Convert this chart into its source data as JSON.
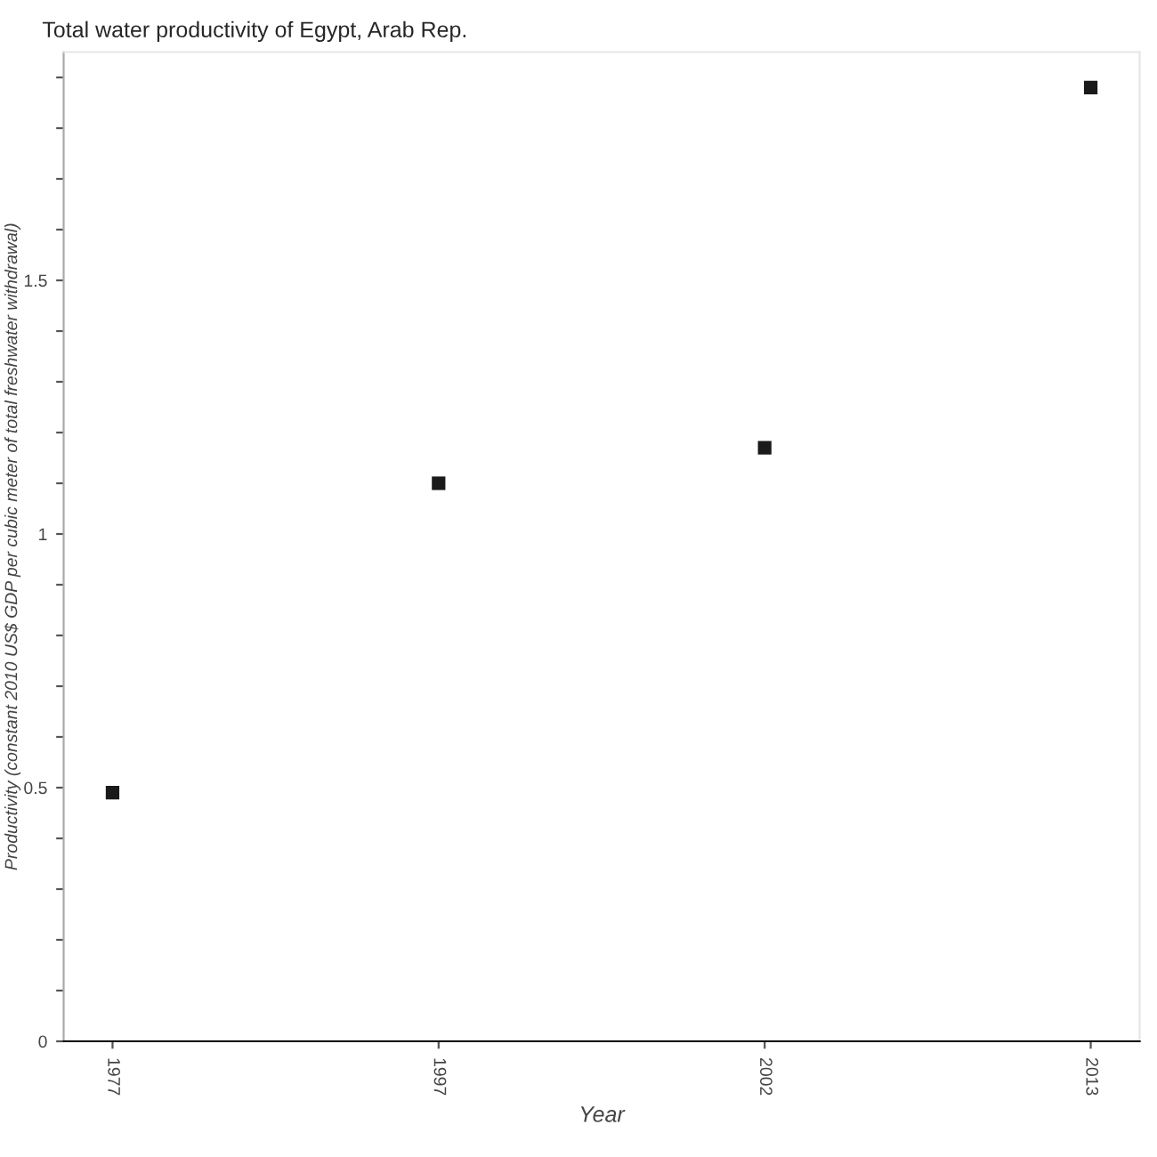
{
  "chart_data": {
    "type": "scatter",
    "title": "Total water productivity of Egypt, Arab Rep.",
    "xlabel": "Year",
    "ylabel": "Productivity (constant 2010 US$ GDP per cubic meter of total freshwater withdrawal)",
    "categories": [
      "1977",
      "1997",
      "2002",
      "2013"
    ],
    "series": [
      {
        "color": "#1a1a1a",
        "values": [
          0.49,
          1.1,
          1.17,
          1.88
        ]
      }
    ],
    "ylim": [
      0,
      1.95
    ],
    "yticks": [
      0,
      {
        "value": 0.1,
        "label": null
      },
      {
        "value": 0.2,
        "label": null
      },
      {
        "value": 0.3,
        "label": null
      },
      {
        "value": 0.4,
        "label": null
      },
      0.5,
      {
        "value": 0.6,
        "label": null
      },
      {
        "value": 0.7,
        "label": null
      },
      {
        "value": 0.8,
        "label": null
      },
      {
        "value": 0.9,
        "label": null
      },
      1,
      {
        "value": 1.1,
        "label": null
      },
      {
        "value": 1.2,
        "label": null
      },
      {
        "value": 1.3,
        "label": null
      },
      {
        "value": 1.4,
        "label": null
      },
      1.5,
      {
        "value": 1.6,
        "label": null
      },
      {
        "value": 1.7,
        "label": null
      },
      {
        "value": 1.8,
        "label": null
      },
      {
        "value": 1.9,
        "label": null
      }
    ],
    "grid": false,
    "marker": "square",
    "legend": false
  }
}
